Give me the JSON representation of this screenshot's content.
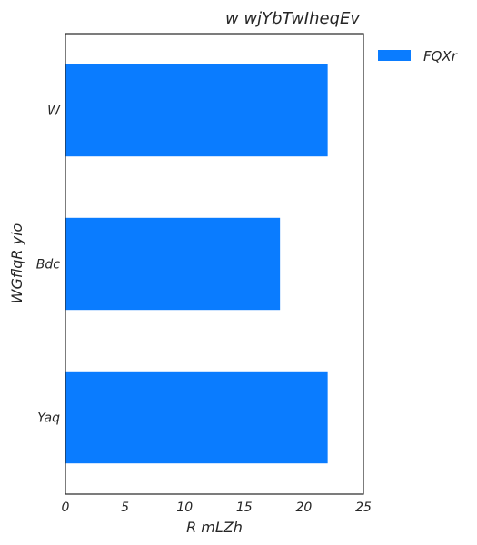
{
  "chart_data": {
    "type": "bar",
    "orientation": "horizontal",
    "title": "w wjYbTwIheqEv",
    "xlabel": "R mLZh",
    "ylabel": "WGflqR  yio",
    "categories": [
      "W",
      "Bdc",
      "Yaq"
    ],
    "series": [
      {
        "name": "FQXr",
        "values": [
          22,
          18,
          22
        ],
        "color": "#0a7cff"
      }
    ],
    "xlim": [
      0,
      25
    ],
    "xticks": [
      0,
      5,
      10,
      15,
      20,
      25
    ],
    "grid": false,
    "legend": "outside-top-right"
  }
}
